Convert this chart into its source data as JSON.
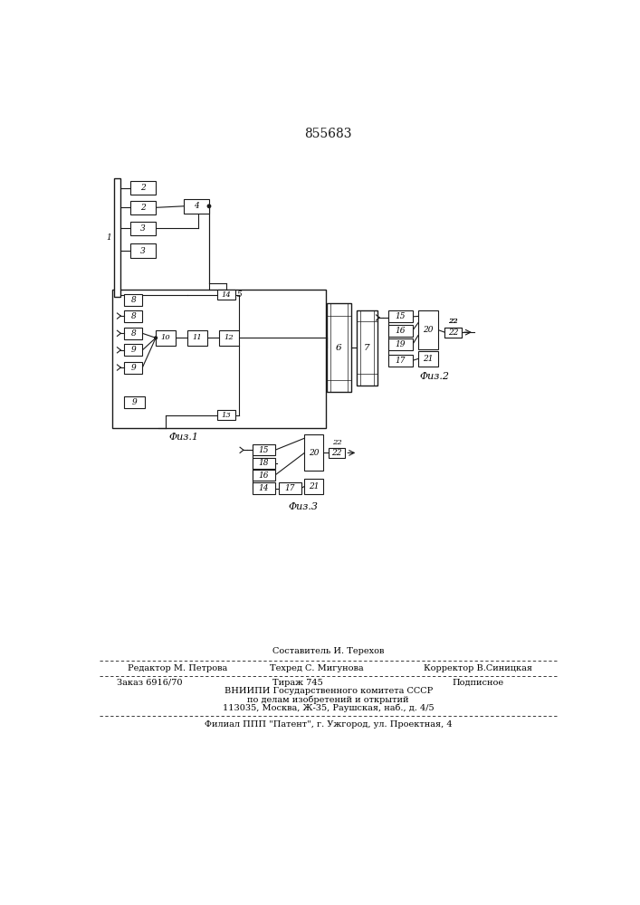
{
  "title": "855683",
  "fig1_label": "Φиз.1",
  "fig2_label": "Φиз.2",
  "fig3_label": "Φиз.3",
  "bg_color": "#ffffff",
  "line_color": "#1a1a1a",
  "footer_sestavitel": "Составитель И. Терехов",
  "footer_tehred": "Техред С. Мигунова",
  "footer_redaktor": "Редактор М. Петрова",
  "footer_korrektor": "Корректор В.Синицкая",
  "footer_zakaz": "Заказ 6916/70",
  "footer_tirazh": "Тираж 745",
  "footer_podpisnoe": "Подписное",
  "footer_vniip1": "ВНИИПИ Государственного комитета СССР",
  "footer_vniip2": "по делам изобретений и открытий",
  "footer_addr": "113035, Москва, Ж-35, Раушская, наб., д. 4/5",
  "footer_filial": "Филиал ППП \"Патент\", г. Ужгород, ул. Проектная, 4"
}
